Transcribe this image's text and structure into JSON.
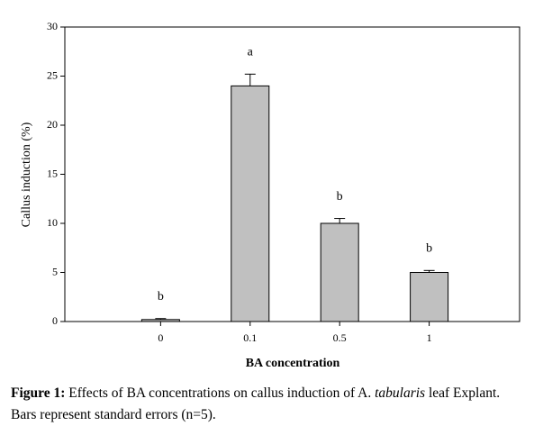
{
  "chart_data": {
    "type": "bar",
    "categories": [
      "0",
      "0.1",
      "0.5",
      "1"
    ],
    "values": [
      0.2,
      24,
      10,
      5
    ],
    "errors": [
      0.1,
      1.2,
      0.5,
      0.2
    ],
    "annotations": [
      "b",
      "a",
      "b",
      "b"
    ],
    "color": "#c0c0c0",
    "ylim": [
      0,
      30
    ],
    "yticks": [
      0,
      5,
      10,
      15,
      20,
      25,
      30
    ],
    "ylabel": "Callus induction (%)",
    "xlabel": "BA concentration"
  },
  "caption": {
    "label": "Figure 1:",
    "text_before": " Effects of BA concentrations on callus induction of A. ",
    "italic": "tabularis",
    "text_after": " leaf Explant. Bars represent standard errors (n=5)."
  }
}
